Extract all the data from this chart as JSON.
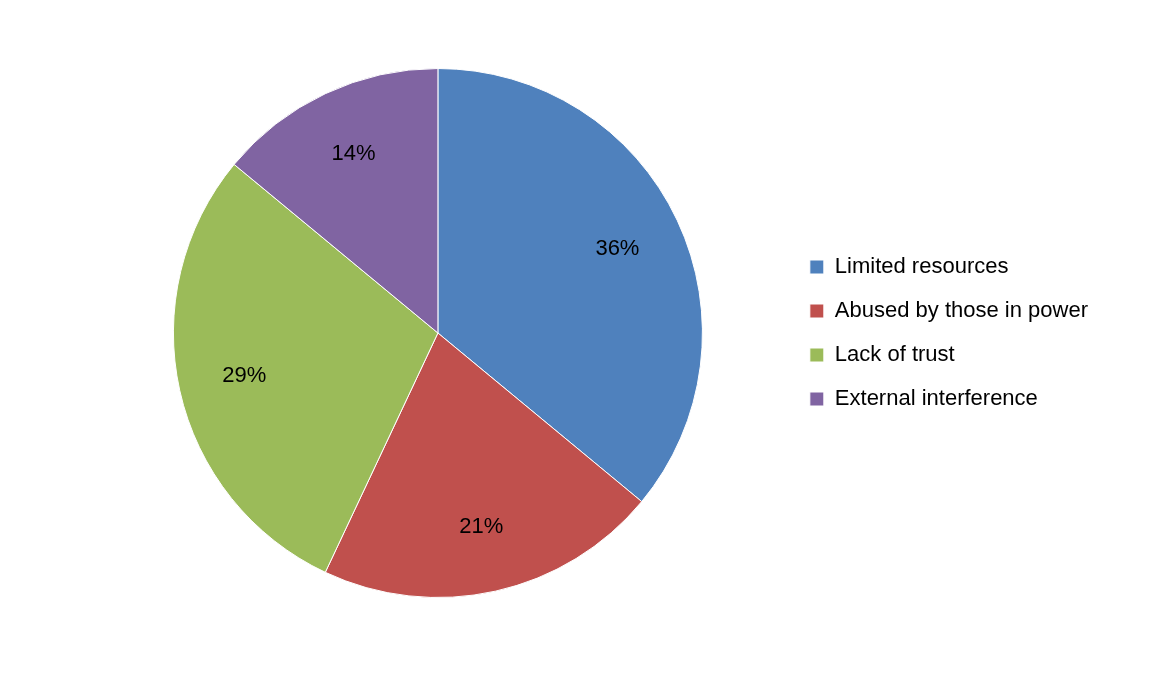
{
  "chart_data": {
    "type": "pie",
    "categories": [
      "Limited resources",
      "Abused by those in power",
      "Lack of trust",
      "External interference"
    ],
    "values": [
      36,
      21,
      29,
      14
    ],
    "colors": [
      "#4f81bd",
      "#c0504d",
      "#9bbb59",
      "#8064a2"
    ],
    "value_labels": [
      "36%",
      "21%",
      "29%",
      "14%"
    ],
    "legend": "right"
  }
}
